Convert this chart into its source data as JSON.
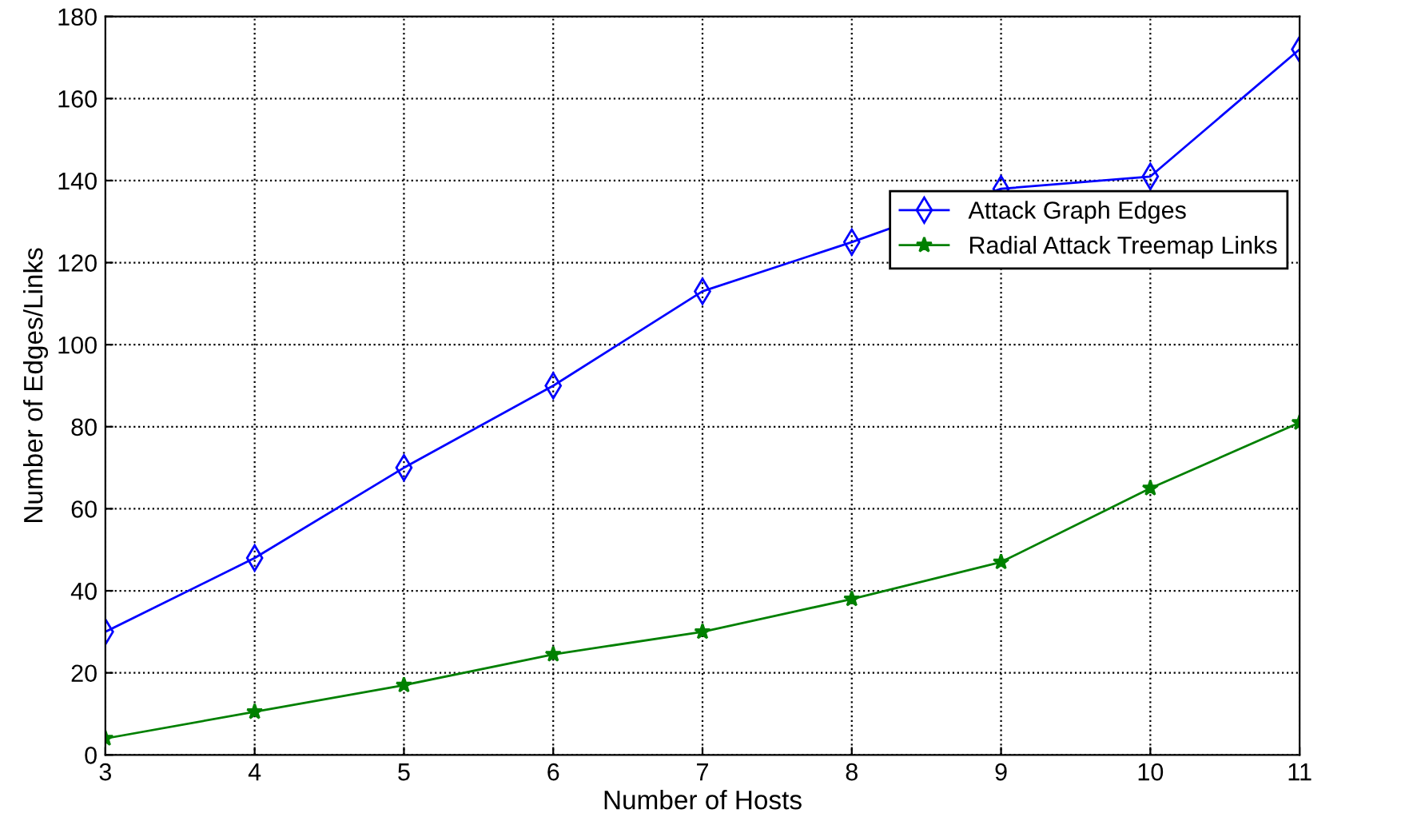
{
  "chart_data": {
    "type": "line",
    "xlabel": "Number of Hosts",
    "ylabel": "Number of Edges/Links",
    "x": [
      3,
      4,
      5,
      6,
      7,
      8,
      9,
      10,
      11
    ],
    "series": [
      {
        "name": "Attack Graph Edges",
        "color": "#0000ff",
        "marker": "diamond",
        "values": [
          30,
          48,
          70,
          90,
          113,
          125,
          138,
          141,
          172
        ]
      },
      {
        "name": "Radial Attack Treemap Links",
        "color": "#008000",
        "marker": "star",
        "values": [
          4,
          10.5,
          17,
          24.5,
          30,
          38,
          47,
          65,
          81
        ]
      }
    ],
    "xlim": [
      3,
      11
    ],
    "xticks": [
      3,
      4,
      5,
      6,
      7,
      8,
      9,
      10,
      11
    ],
    "ylim": [
      0,
      180
    ],
    "yticks": [
      0,
      20,
      40,
      60,
      80,
      100,
      120,
      140,
      160,
      180
    ],
    "grid": true,
    "legend": "top right",
    "line_style": "solid"
  }
}
